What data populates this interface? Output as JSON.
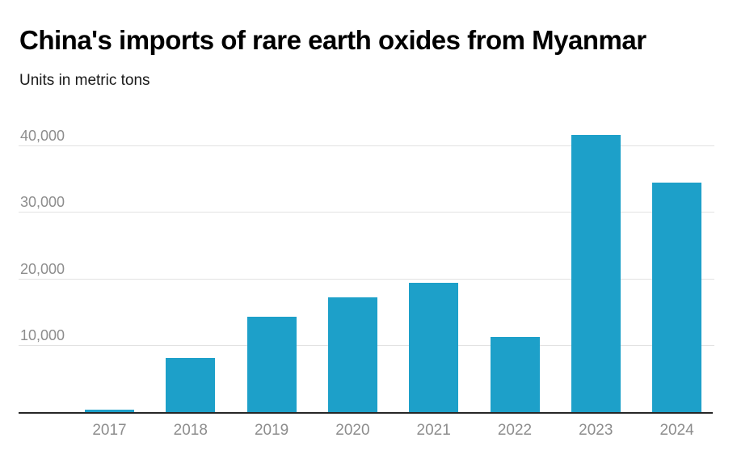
{
  "header": {
    "title": "China's imports of rare earth oxides from Myanmar",
    "subtitle": "Units in metric tons"
  },
  "chart_data": {
    "type": "bar",
    "title": "China's imports of rare earth oxides from Myanmar",
    "subtitle": "Units in metric tons",
    "categories": [
      "2017",
      "2018",
      "2019",
      "2020",
      "2021",
      "2022",
      "2023",
      "2024"
    ],
    "values": [
      400,
      8200,
      14400,
      17300,
      19400,
      11300,
      41700,
      34500
    ],
    "xlabel": "",
    "ylabel": "metric tons",
    "ylim": [
      0,
      40000
    ],
    "yticks": [
      10000,
      20000,
      30000,
      40000
    ],
    "ytick_labels": [
      "10,000",
      "20,000",
      "30,000",
      "40,000"
    ],
    "grid": true,
    "legend": false,
    "bar_color": "#1da0c9"
  },
  "colors": {
    "background": "#ffffff",
    "bar": "#1da0c9",
    "title": "#000000",
    "subtitle": "#1a1a1a",
    "axis_label": "#8d8d8d",
    "gridline": "#e2e2e2",
    "baseline": "#262626"
  }
}
